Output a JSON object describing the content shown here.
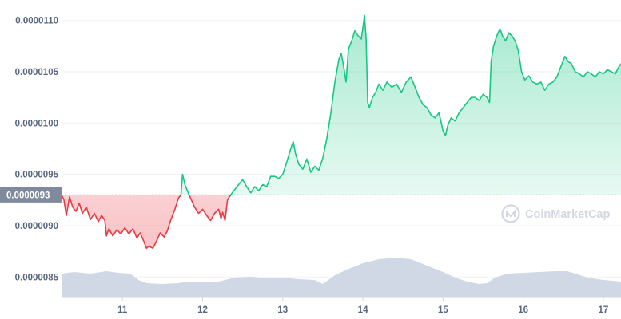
{
  "chart_data": {
    "type": "area",
    "grid": true,
    "y_axis": {
      "position": "left",
      "range": [
        8.3e-06,
        1.12e-05
      ],
      "ticks": [
        "0.0000085",
        "0.0000090",
        "0.0000095",
        "0.0000100",
        "0.0000105",
        "0.0000110"
      ],
      "tick_values": [
        8.5e-06,
        9e-06,
        9.5e-06,
        1e-05,
        1.05e-05,
        1.1e-05
      ]
    },
    "x_axis": {
      "range": [
        10.24,
        17.22
      ],
      "ticks": [
        "11",
        "12",
        "13",
        "14",
        "15",
        "16",
        "17"
      ],
      "tick_values": [
        11,
        12,
        13,
        14,
        15,
        16,
        17
      ]
    },
    "reference_line": {
      "value": 9.3e-06,
      "label": "0.0000093",
      "style": "dotted"
    },
    "colors": {
      "up": "#16c784",
      "down": "#ea3943",
      "volume": "#cfd6e4",
      "grid": "#eff2f5",
      "axis_text": "#58667e",
      "badge": "#808a9d"
    },
    "price_series": [
      [
        10.24,
        9.3e-06
      ],
      [
        10.27,
        9.25e-06
      ],
      [
        10.3,
        9.1e-06
      ],
      [
        10.34,
        9.28e-06
      ],
      [
        10.38,
        9.18e-06
      ],
      [
        10.42,
        9.14e-06
      ],
      [
        10.46,
        9.22e-06
      ],
      [
        10.5,
        9.12e-06
      ],
      [
        10.55,
        9.18e-06
      ],
      [
        10.6,
        9.06e-06
      ],
      [
        10.65,
        9.12e-06
      ],
      [
        10.7,
        9.04e-06
      ],
      [
        10.74,
        9.1e-06
      ],
      [
        10.78,
        9.05e-06
      ],
      [
        10.8,
        8.9e-06
      ],
      [
        10.83,
        8.97e-06
      ],
      [
        10.88,
        8.9e-06
      ],
      [
        10.93,
        8.96e-06
      ],
      [
        10.98,
        8.92e-06
      ],
      [
        11.03,
        8.98e-06
      ],
      [
        11.08,
        8.92e-06
      ],
      [
        11.13,
        8.97e-06
      ],
      [
        11.18,
        8.88e-06
      ],
      [
        11.22,
        8.93e-06
      ],
      [
        11.26,
        8.86e-06
      ],
      [
        11.3,
        8.78e-06
      ],
      [
        11.33,
        8.8e-06
      ],
      [
        11.38,
        8.78e-06
      ],
      [
        11.42,
        8.84e-06
      ],
      [
        11.47,
        8.93e-06
      ],
      [
        11.52,
        8.89e-06
      ],
      [
        11.56,
        8.95e-06
      ],
      [
        11.6,
        9.05e-06
      ],
      [
        11.65,
        9.15e-06
      ],
      [
        11.7,
        9.27e-06
      ],
      [
        11.73,
        9.3e-06
      ],
      [
        11.75,
        9.5e-06
      ],
      [
        11.78,
        9.4e-06
      ],
      [
        11.82,
        9.32e-06
      ],
      [
        11.86,
        9.25e-06
      ],
      [
        11.9,
        9.18e-06
      ],
      [
        11.95,
        9.12e-06
      ],
      [
        12.0,
        9.16e-06
      ],
      [
        12.05,
        9.1e-06
      ],
      [
        12.1,
        9.05e-06
      ],
      [
        12.15,
        9.12e-06
      ],
      [
        12.2,
        9.16e-06
      ],
      [
        12.23,
        9.07e-06
      ],
      [
        12.25,
        9.13e-06
      ],
      [
        12.28,
        9.05e-06
      ],
      [
        12.31,
        9.25e-06
      ],
      [
        12.35,
        9.3e-06
      ],
      [
        12.4,
        9.35e-06
      ],
      [
        12.45,
        9.4e-06
      ],
      [
        12.5,
        9.45e-06
      ],
      [
        12.55,
        9.38e-06
      ],
      [
        12.6,
        9.32e-06
      ],
      [
        12.65,
        9.38e-06
      ],
      [
        12.7,
        9.34e-06
      ],
      [
        12.75,
        9.4e-06
      ],
      [
        12.8,
        9.38e-06
      ],
      [
        12.85,
        9.48e-06
      ],
      [
        12.9,
        9.48e-06
      ],
      [
        12.95,
        9.46e-06
      ],
      [
        13.0,
        9.5e-06
      ],
      [
        13.05,
        9.62e-06
      ],
      [
        13.1,
        9.75e-06
      ],
      [
        13.13,
        9.82e-06
      ],
      [
        13.16,
        9.7e-06
      ],
      [
        13.2,
        9.6e-06
      ],
      [
        13.25,
        9.55e-06
      ],
      [
        13.3,
        9.65e-06
      ],
      [
        13.35,
        9.52e-06
      ],
      [
        13.4,
        9.58e-06
      ],
      [
        13.45,
        9.54e-06
      ],
      [
        13.5,
        9.66e-06
      ],
      [
        13.55,
        9.85e-06
      ],
      [
        13.6,
        1.01e-05
      ],
      [
        13.65,
        1.04e-05
      ],
      [
        13.7,
        1.062e-05
      ],
      [
        13.73,
        1.068e-05
      ],
      [
        13.76,
        1.055e-05
      ],
      [
        13.79,
        1.04e-05
      ],
      [
        13.82,
        1.072e-05
      ],
      [
        13.86,
        1.08e-05
      ],
      [
        13.9,
        1.09e-05
      ],
      [
        13.94,
        1.085e-05
      ],
      [
        13.98,
        1.082e-05
      ],
      [
        14.02,
        1.105e-05
      ],
      [
        14.04,
        1.082e-05
      ],
      [
        14.06,
        1.02e-05
      ],
      [
        14.08,
        1.015e-05
      ],
      [
        14.12,
        1.025e-05
      ],
      [
        14.16,
        1.03e-05
      ],
      [
        14.2,
        1.038e-05
      ],
      [
        14.25,
        1.032e-05
      ],
      [
        14.3,
        1.04e-05
      ],
      [
        14.36,
        1.035e-05
      ],
      [
        14.42,
        1.038e-05
      ],
      [
        14.48,
        1.03e-05
      ],
      [
        14.54,
        1.04e-05
      ],
      [
        14.6,
        1.045e-05
      ],
      [
        14.65,
        1.035e-05
      ],
      [
        14.7,
        1.025e-05
      ],
      [
        14.75,
        1.018e-05
      ],
      [
        14.8,
        1.015e-05
      ],
      [
        14.85,
        1.008e-05
      ],
      [
        14.9,
        1.005e-05
      ],
      [
        14.95,
        1.01e-05
      ],
      [
        15.0,
        9.92e-06
      ],
      [
        15.03,
        9.88e-06
      ],
      [
        15.06,
        9.98e-06
      ],
      [
        15.1,
        1.005e-05
      ],
      [
        15.15,
        1.002e-05
      ],
      [
        15.2,
        1.01e-05
      ],
      [
        15.25,
        1.015e-05
      ],
      [
        15.3,
        1.02e-05
      ],
      [
        15.35,
        1.025e-05
      ],
      [
        15.4,
        1.025e-05
      ],
      [
        15.45,
        1.022e-05
      ],
      [
        15.5,
        1.028e-05
      ],
      [
        15.55,
        1.025e-05
      ],
      [
        15.58,
        1.02e-05
      ],
      [
        15.6,
        1.06e-05
      ],
      [
        15.63,
        1.075e-05
      ],
      [
        15.67,
        1.085e-05
      ],
      [
        15.71,
        1.092e-05
      ],
      [
        15.74,
        1.085e-05
      ],
      [
        15.78,
        1.08e-05
      ],
      [
        15.82,
        1.088e-05
      ],
      [
        15.86,
        1.085e-05
      ],
      [
        15.9,
        1.08e-05
      ],
      [
        15.94,
        1.07e-05
      ],
      [
        15.98,
        1.05e-05
      ],
      [
        16.02,
        1.042e-05
      ],
      [
        16.07,
        1.046e-05
      ],
      [
        16.12,
        1.04e-05
      ],
      [
        16.17,
        1.038e-05
      ],
      [
        16.22,
        1.04e-05
      ],
      [
        16.27,
        1.032e-05
      ],
      [
        16.32,
        1.038e-05
      ],
      [
        16.37,
        1.04e-05
      ],
      [
        16.42,
        1.045e-05
      ],
      [
        16.47,
        1.055e-05
      ],
      [
        16.52,
        1.065e-05
      ],
      [
        16.56,
        1.06e-05
      ],
      [
        16.6,
        1.058e-05
      ],
      [
        16.65,
        1.05e-05
      ],
      [
        16.7,
        1.048e-05
      ],
      [
        16.75,
        1.045e-05
      ],
      [
        16.8,
        1.05e-05
      ],
      [
        16.85,
        1.048e-05
      ],
      [
        16.9,
        1.045e-05
      ],
      [
        16.95,
        1.05e-05
      ],
      [
        17.0,
        1.048e-05
      ],
      [
        17.05,
        1.052e-05
      ],
      [
        17.1,
        1.05e-05
      ],
      [
        17.15,
        1.048e-05
      ],
      [
        17.18,
        1.053e-05
      ],
      [
        17.22,
        1.058e-05
      ]
    ],
    "volume_series": [
      [
        10.24,
        0.3
      ],
      [
        10.4,
        0.32
      ],
      [
        10.6,
        0.3
      ],
      [
        10.8,
        0.33
      ],
      [
        10.95,
        0.31
      ],
      [
        11.1,
        0.3
      ],
      [
        11.2,
        0.22
      ],
      [
        11.3,
        0.18
      ],
      [
        11.5,
        0.17
      ],
      [
        11.7,
        0.18
      ],
      [
        11.8,
        0.2
      ],
      [
        12.0,
        0.19
      ],
      [
        12.2,
        0.2
      ],
      [
        12.4,
        0.25
      ],
      [
        12.6,
        0.26
      ],
      [
        12.8,
        0.24
      ],
      [
        13.0,
        0.25
      ],
      [
        13.2,
        0.23
      ],
      [
        13.4,
        0.22
      ],
      [
        13.5,
        0.17
      ],
      [
        13.65,
        0.28
      ],
      [
        13.8,
        0.35
      ],
      [
        14.0,
        0.43
      ],
      [
        14.2,
        0.48
      ],
      [
        14.4,
        0.5
      ],
      [
        14.6,
        0.48
      ],
      [
        14.8,
        0.4
      ],
      [
        15.0,
        0.32
      ],
      [
        15.15,
        0.25
      ],
      [
        15.3,
        0.2
      ],
      [
        15.45,
        0.17
      ],
      [
        15.55,
        0.18
      ],
      [
        15.65,
        0.25
      ],
      [
        15.8,
        0.3
      ],
      [
        16.0,
        0.31
      ],
      [
        16.2,
        0.32
      ],
      [
        16.4,
        0.33
      ],
      [
        16.55,
        0.33
      ],
      [
        16.65,
        0.3
      ],
      [
        16.8,
        0.25
      ],
      [
        17.0,
        0.22
      ],
      [
        17.22,
        0.2
      ]
    ],
    "watermark": "CoinMarketCap"
  }
}
